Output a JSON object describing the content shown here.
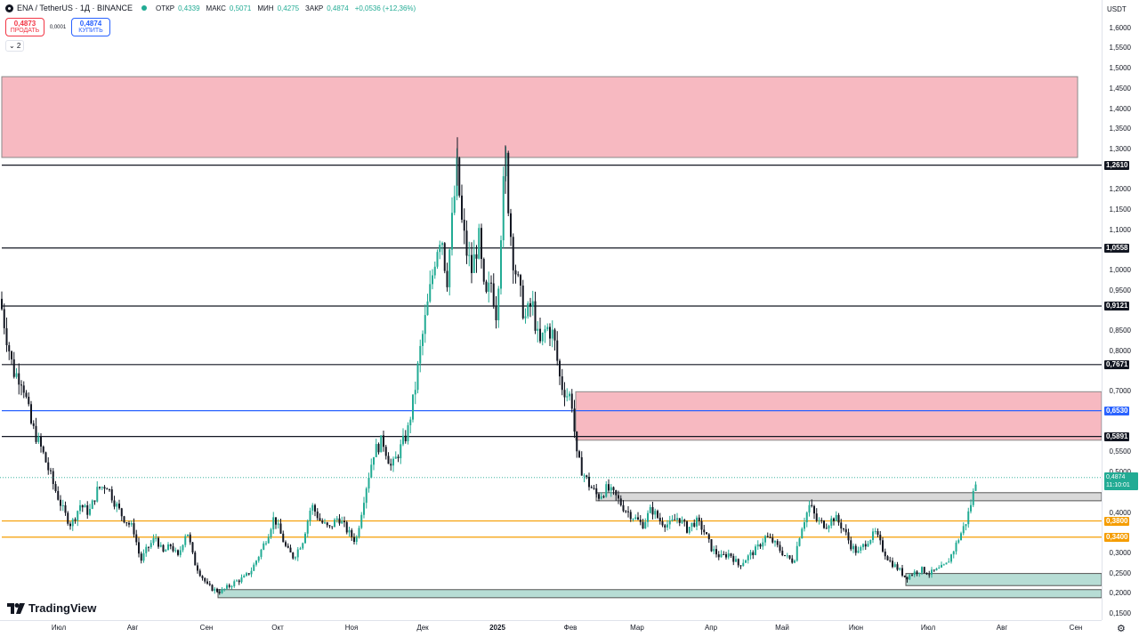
{
  "header": {
    "symbol": "ENA / TetherUS · 1Д · BINANCE",
    "ohlc": [
      {
        "k": "ОТКР",
        "v": "0,4339"
      },
      {
        "k": "МАКС",
        "v": "0,5071"
      },
      {
        "k": "МИН",
        "v": "0,4275"
      },
      {
        "k": "ЗАКР",
        "v": "0,4874"
      },
      {
        "k": "",
        "v": "+0,0536 (+12,36%)"
      }
    ]
  },
  "trade": {
    "sell_price": "0,4873",
    "sell_label": "ПРОДАТЬ",
    "spread": "0,0001",
    "buy_price": "0,4874",
    "buy_label": "КУПИТЬ"
  },
  "indicators_toggle": "⌄ 2",
  "currency": "USDT",
  "brand": "TradingView",
  "price_label": {
    "value": "0,4874",
    "countdown": "11:10:01"
  },
  "chart_data": {
    "type": "candlestick",
    "ylim": [
      0.15,
      1.65
    ],
    "y_ticks": [
      {
        "v": 1.6,
        "l": "1,6000"
      },
      {
        "v": 1.55,
        "l": "1,5500"
      },
      {
        "v": 1.5,
        "l": "1,5000"
      },
      {
        "v": 1.45,
        "l": "1,4500"
      },
      {
        "v": 1.4,
        "l": "1,4000"
      },
      {
        "v": 1.35,
        "l": "1,3500"
      },
      {
        "v": 1.3,
        "l": "1,3000"
      },
      {
        "v": 1.2,
        "l": "1,2000"
      },
      {
        "v": 1.15,
        "l": "1,1500"
      },
      {
        "v": 1.1,
        "l": "1,1000"
      },
      {
        "v": 1.0,
        "l": "1,0000"
      },
      {
        "v": 0.95,
        "l": "0,9500"
      },
      {
        "v": 0.85,
        "l": "0,8500"
      },
      {
        "v": 0.8,
        "l": "0,8000"
      },
      {
        "v": 0.7,
        "l": "0,7000"
      },
      {
        "v": 0.55,
        "l": "0,5500"
      },
      {
        "v": 0.5,
        "l": "0,5000"
      },
      {
        "v": 0.4,
        "l": "0,4000"
      },
      {
        "v": 0.3,
        "l": "0,3000"
      },
      {
        "v": 0.25,
        "l": "0,2500"
      },
      {
        "v": 0.2,
        "l": "0,2000"
      },
      {
        "v": 0.15,
        "l": "0,1500"
      }
    ],
    "x_ticks": [
      {
        "label": "Июл",
        "bold": false
      },
      {
        "label": "Авг",
        "bold": false
      },
      {
        "label": "Сен",
        "bold": false
      },
      {
        "label": "Окт",
        "bold": false
      },
      {
        "label": "Ноя",
        "bold": false
      },
      {
        "label": "Дек",
        "bold": false
      },
      {
        "label": "2025",
        "bold": true
      },
      {
        "label": "Фев",
        "bold": false
      },
      {
        "label": "Мар",
        "bold": false
      },
      {
        "label": "Апр",
        "bold": false
      },
      {
        "label": "Май",
        "bold": false
      },
      {
        "label": "Июн",
        "bold": false
      },
      {
        "label": "Июл",
        "bold": false
      },
      {
        "label": "Авг",
        "bold": false
      },
      {
        "label": "Сен",
        "bold": false
      }
    ],
    "levels": [
      {
        "value": 1.261,
        "label": "1,2610",
        "color": "#131722"
      },
      {
        "value": 1.0558,
        "label": "1,0558",
        "color": "#131722"
      },
      {
        "value": 0.9121,
        "label": "0,9121",
        "color": "#131722"
      },
      {
        "value": 0.7671,
        "label": "0,7671",
        "color": "#131722"
      },
      {
        "value": 0.653,
        "label": "0,6530",
        "color": "#2962ff"
      },
      {
        "value": 0.5891,
        "label": "0,5891",
        "color": "#131722"
      },
      {
        "value": 0.38,
        "label": "0,3800",
        "color": "#f59d00"
      },
      {
        "value": 0.34,
        "label": "0,3400",
        "color": "#f59d00"
      }
    ],
    "zones": [
      {
        "type": "supply",
        "top": 1.48,
        "bottom": 1.28,
        "fill": "#f7b9c1",
        "stroke": "#8a8a8a"
      },
      {
        "type": "supply",
        "top": 0.7,
        "bottom": 0.58,
        "fill": "#f7b9c1",
        "stroke": "#8a8a8a"
      },
      {
        "type": "range",
        "top": 0.45,
        "bottom": 0.43,
        "fill": "#d9d9d9",
        "stroke": "#555555"
      },
      {
        "type": "demand",
        "top": 0.25,
        "bottom": 0.22,
        "fill": "#b7ddd5",
        "stroke": "#555555"
      },
      {
        "type": "demand",
        "top": 0.21,
        "bottom": 0.19,
        "fill": "#b7ddd5",
        "stroke": "#555555"
      }
    ],
    "path": [
      [
        0,
        0.93
      ],
      [
        8,
        0.83
      ],
      [
        15,
        0.75
      ],
      [
        25,
        0.73
      ],
      [
        35,
        0.62
      ],
      [
        48,
        0.55
      ],
      [
        60,
        0.47
      ],
      [
        72,
        0.4
      ],
      [
        80,
        0.37
      ],
      [
        90,
        0.42
      ],
      [
        100,
        0.4
      ],
      [
        110,
        0.46
      ],
      [
        120,
        0.47
      ],
      [
        128,
        0.43
      ],
      [
        138,
        0.39
      ],
      [
        150,
        0.36
      ],
      [
        158,
        0.28
      ],
      [
        165,
        0.31
      ],
      [
        175,
        0.34
      ],
      [
        183,
        0.3
      ],
      [
        192,
        0.32
      ],
      [
        200,
        0.29
      ],
      [
        210,
        0.36
      ],
      [
        218,
        0.28
      ],
      [
        225,
        0.25
      ],
      [
        233,
        0.22
      ],
      [
        240,
        0.21
      ],
      [
        248,
        0.205
      ],
      [
        255,
        0.215
      ],
      [
        265,
        0.23
      ],
      [
        275,
        0.24
      ],
      [
        283,
        0.26
      ],
      [
        292,
        0.3
      ],
      [
        300,
        0.34
      ],
      [
        308,
        0.39
      ],
      [
        315,
        0.35
      ],
      [
        322,
        0.31
      ],
      [
        330,
        0.29
      ],
      [
        340,
        0.33
      ],
      [
        350,
        0.42
      ],
      [
        360,
        0.38
      ],
      [
        370,
        0.36
      ],
      [
        380,
        0.39
      ],
      [
        392,
        0.35
      ],
      [
        400,
        0.33
      ],
      [
        410,
        0.45
      ],
      [
        420,
        0.55
      ],
      [
        430,
        0.58
      ],
      [
        440,
        0.51
      ],
      [
        448,
        0.55
      ],
      [
        458,
        0.6
      ],
      [
        466,
        0.7
      ],
      [
        472,
        0.8
      ],
      [
        478,
        0.88
      ],
      [
        484,
        0.96
      ],
      [
        490,
        1.05
      ],
      [
        496,
        1.1
      ],
      [
        502,
        0.97
      ],
      [
        508,
        1.12
      ],
      [
        514,
        1.26
      ],
      [
        518,
        1.13
      ],
      [
        524,
        1.05
      ],
      [
        530,
        1.0
      ],
      [
        538,
        1.08
      ],
      [
        545,
        0.92
      ],
      [
        552,
        0.97
      ],
      [
        558,
        0.89
      ],
      [
        563,
        1.1
      ],
      [
        568,
        1.29
      ],
      [
        572,
        1.14
      ],
      [
        576,
        1.04
      ],
      [
        582,
        0.97
      ],
      [
        590,
        0.88
      ],
      [
        598,
        0.92
      ],
      [
        606,
        0.81
      ],
      [
        614,
        0.86
      ],
      [
        622,
        0.84
      ],
      [
        630,
        0.72
      ],
      [
        638,
        0.69
      ],
      [
        642,
        0.69
      ],
      [
        648,
        0.54
      ],
      [
        655,
        0.5
      ],
      [
        662,
        0.47
      ],
      [
        672,
        0.44
      ],
      [
        682,
        0.46
      ],
      [
        692,
        0.44
      ],
      [
        702,
        0.41
      ],
      [
        712,
        0.39
      ],
      [
        722,
        0.37
      ],
      [
        732,
        0.41
      ],
      [
        742,
        0.38
      ],
      [
        752,
        0.37
      ],
      [
        762,
        0.39
      ],
      [
        772,
        0.36
      ],
      [
        782,
        0.38
      ],
      [
        790,
        0.36
      ],
      [
        800,
        0.31
      ],
      [
        810,
        0.29
      ],
      [
        820,
        0.3
      ],
      [
        830,
        0.27
      ],
      [
        840,
        0.29
      ],
      [
        850,
        0.31
      ],
      [
        860,
        0.34
      ],
      [
        868,
        0.33
      ],
      [
        876,
        0.31
      ],
      [
        884,
        0.29
      ],
      [
        892,
        0.28
      ],
      [
        900,
        0.36
      ],
      [
        910,
        0.42
      ],
      [
        918,
        0.38
      ],
      [
        928,
        0.37
      ],
      [
        938,
        0.39
      ],
      [
        948,
        0.36
      ],
      [
        956,
        0.32
      ],
      [
        964,
        0.3
      ],
      [
        974,
        0.33
      ],
      [
        984,
        0.35
      ],
      [
        992,
        0.31
      ],
      [
        1000,
        0.28
      ],
      [
        1010,
        0.26
      ],
      [
        1018,
        0.24
      ],
      [
        1025,
        0.25
      ],
      [
        1035,
        0.26
      ],
      [
        1045,
        0.25
      ],
      [
        1055,
        0.26
      ],
      [
        1063,
        0.27
      ],
      [
        1070,
        0.3
      ],
      [
        1078,
        0.34
      ],
      [
        1086,
        0.38
      ],
      [
        1093,
        0.44
      ],
      [
        1097,
        0.4874
      ]
    ]
  }
}
